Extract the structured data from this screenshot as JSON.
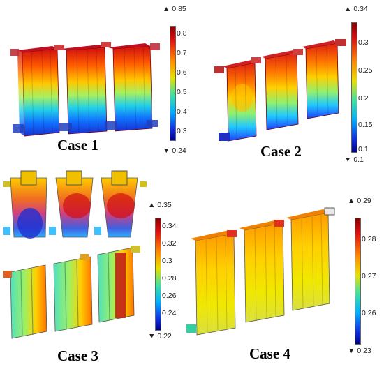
{
  "cases": [
    {
      "id": "case1",
      "label": "Case 1",
      "colorbar": {
        "max": "0.85",
        "min": "0.24",
        "ticks": [
          "0.8",
          "0.7",
          "0.6",
          "0.5",
          "0.4",
          "0.3"
        ]
      }
    },
    {
      "id": "case2",
      "label": "Case 2",
      "colorbar": {
        "max": "0.34",
        "min": "0.1",
        "ticks": [
          "0.3",
          "0.25",
          "0.2",
          "0.15",
          "0.1"
        ]
      }
    },
    {
      "id": "case3",
      "label": "Case 3",
      "colorbar": {
        "max": "0.35",
        "min": "0.22",
        "ticks": [
          "0.34",
          "0.32",
          "0.3",
          "0.28",
          "0.26",
          "0.24"
        ]
      }
    },
    {
      "id": "case4",
      "label": "Case 4",
      "colorbar": {
        "max": "0.29",
        "min": "0.23",
        "ticks": [
          "0.28",
          "0.27",
          "0.26"
        ]
      }
    }
  ],
  "colors": {
    "jet_top": "#7f0000",
    "jet_high": "#ff2000",
    "jet_mid_high": "#ffd200",
    "jet_mid": "#7fff7f",
    "jet_mid_low": "#00c8ff",
    "jet_low": "#0028ff",
    "jet_bottom": "#00007f"
  }
}
